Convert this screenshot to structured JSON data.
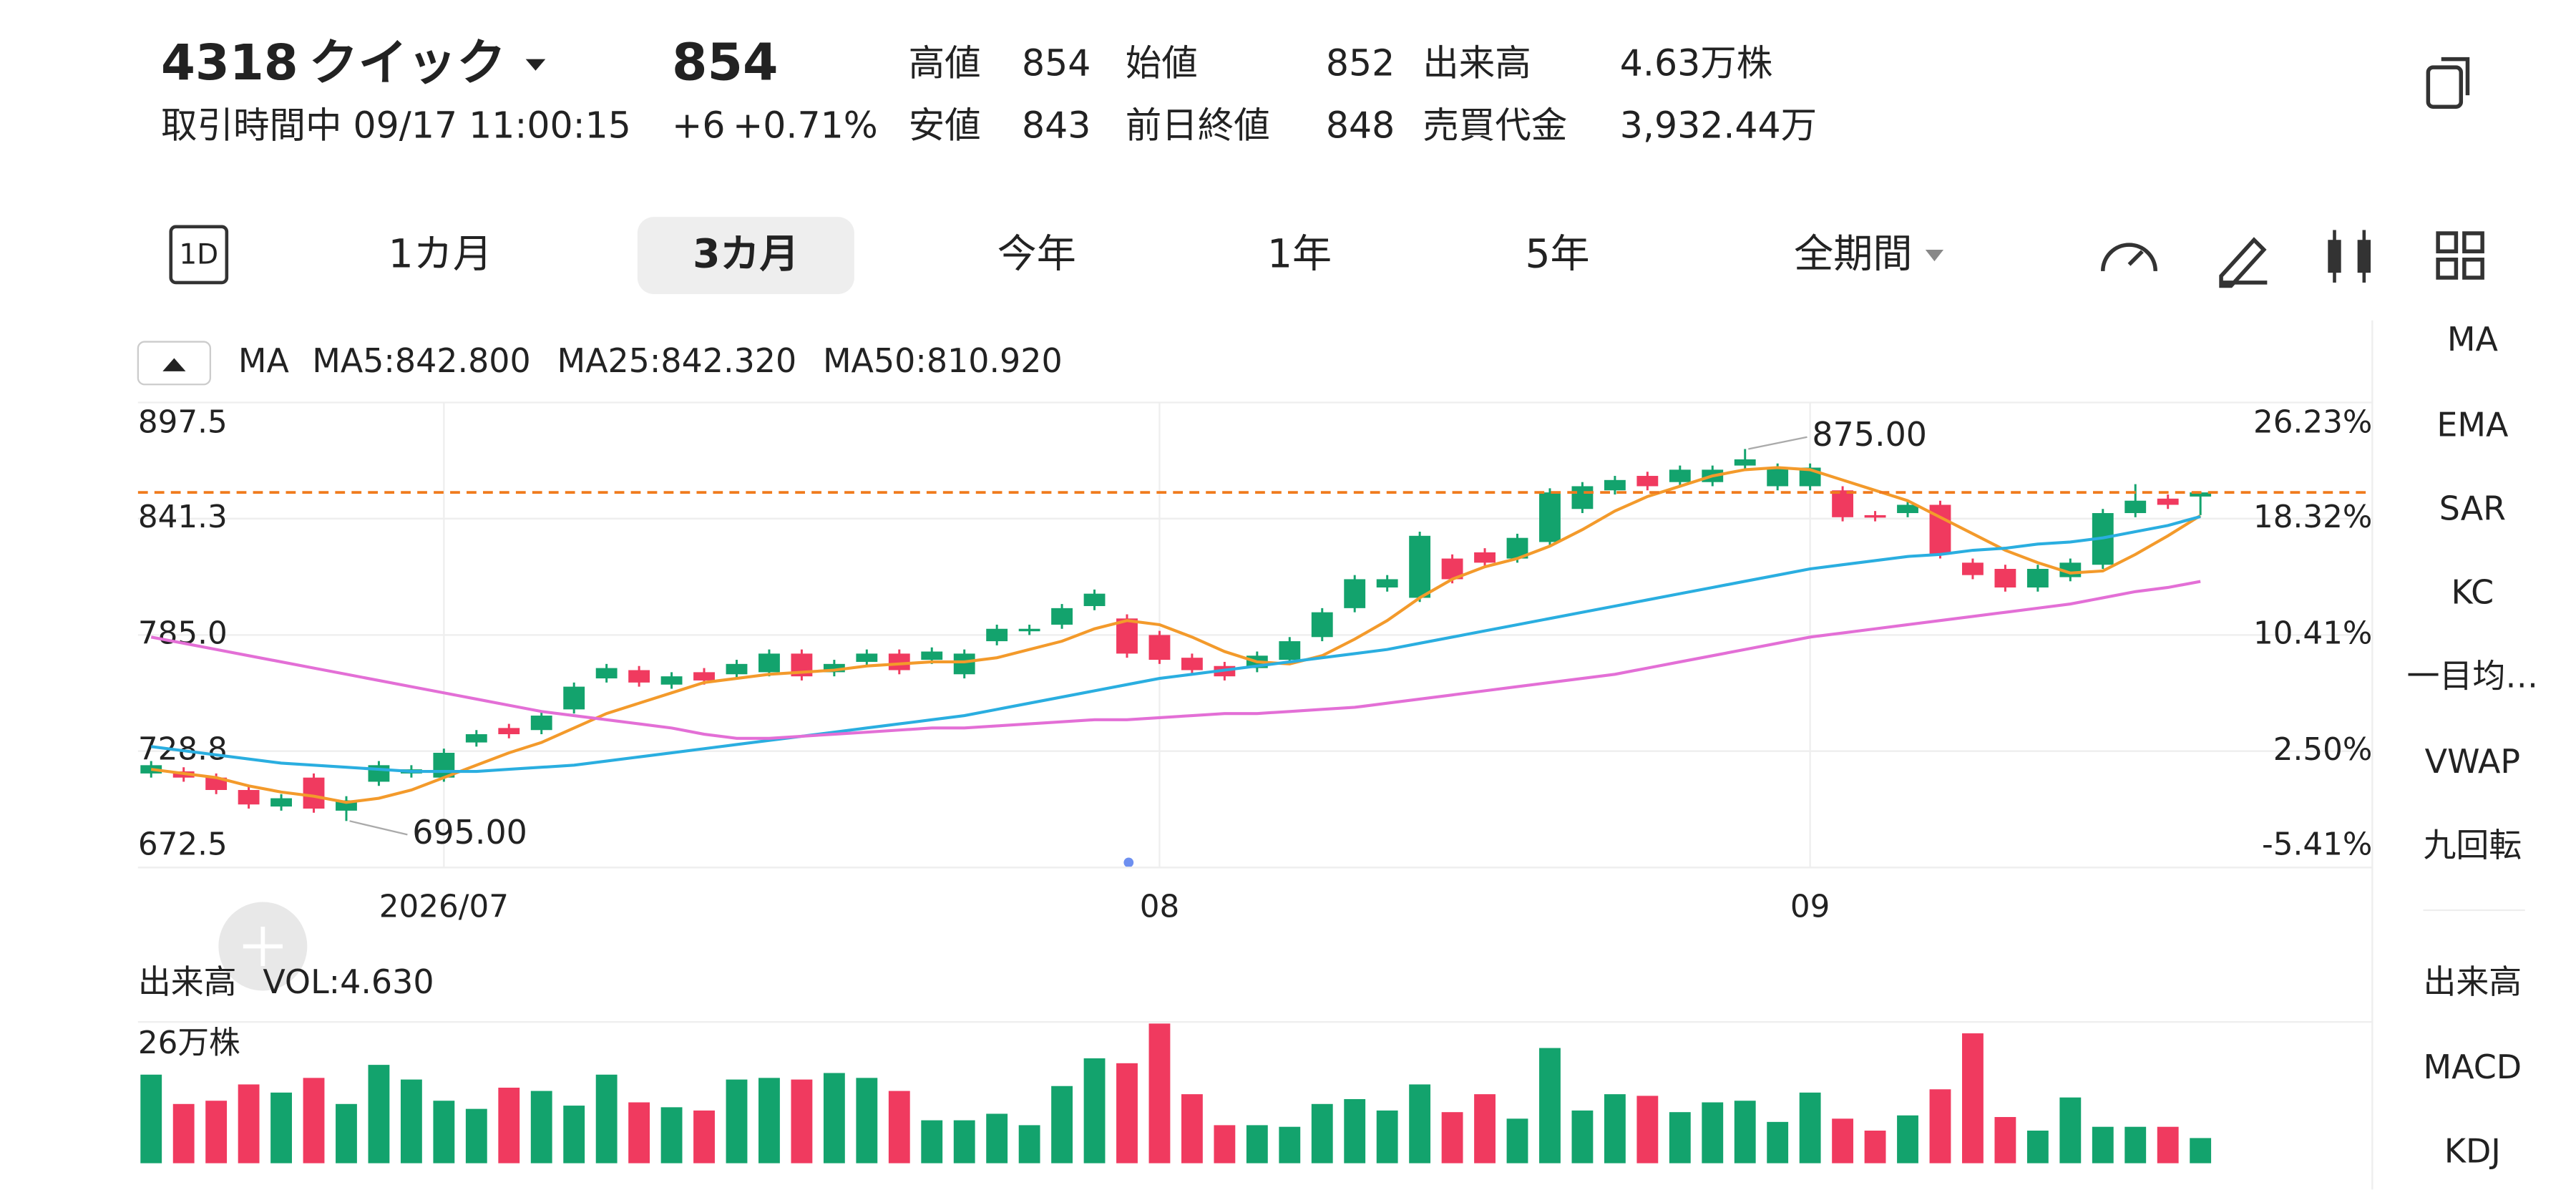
{
  "header": {
    "ticker": "4318",
    "name": "クイック",
    "price": 854,
    "change": "+6",
    "change_pct": "+0.71%",
    "status": "取引時間中 09/17 11:00:15",
    "stats": [
      {
        "label": "高値",
        "value": "854"
      },
      {
        "label": "安値",
        "value": "843"
      },
      {
        "label": "始値",
        "value": "852"
      },
      {
        "label": "前日終値",
        "value": "848"
      },
      {
        "label": "出来高",
        "value": "4.63万株"
      },
      {
        "label": "売買代金",
        "value": "3,932.44万"
      }
    ]
  },
  "period_icon": "1D",
  "tabs": [
    "1カ月",
    "3カ月",
    "今年",
    "1年",
    "5年",
    "全期間"
  ],
  "active_tab": 1,
  "indicator_menu": [
    {
      "label": "MA",
      "active": true
    },
    {
      "label": "EMA",
      "active": false
    },
    {
      "label": "SAR",
      "active": false
    },
    {
      "label": "KC",
      "active": false
    },
    {
      "label": "一目均…",
      "active": false
    },
    {
      "label": "VWAP",
      "active": false
    },
    {
      "label": "九回転",
      "active": false
    },
    {
      "label": "出来高",
      "active": true
    },
    {
      "label": "MACD",
      "active": true
    },
    {
      "label": "KDJ",
      "active": false
    }
  ],
  "chart_data": {
    "type": "candlestick",
    "legend_title": "MA",
    "up_color": "#13a36d",
    "down_color": "#f03a5f",
    "categories": [
      null,
      null,
      null,
      null,
      null,
      null,
      null,
      null,
      null,
      "2026/07",
      null,
      null,
      null,
      null,
      null,
      null,
      null,
      null,
      null,
      null,
      null,
      null,
      null,
      null,
      null,
      null,
      null,
      null,
      null,
      null,
      null,
      "08",
      null,
      null,
      null,
      null,
      null,
      null,
      null,
      null,
      null,
      null,
      null,
      null,
      null,
      null,
      null,
      null,
      null,
      null,
      null,
      "09",
      null,
      null,
      null,
      null,
      null,
      null,
      null,
      null,
      null,
      null,
      null,
      null
    ],
    "open": [
      718,
      719,
      716,
      710,
      702,
      716,
      700,
      714,
      718,
      716,
      733,
      740,
      739,
      749,
      764,
      768,
      761,
      767,
      766,
      767,
      776,
      767,
      772,
      776,
      773,
      766,
      782,
      787,
      790,
      799,
      793,
      785,
      774,
      770,
      769,
      773,
      784,
      798,
      808,
      803,
      822,
      825,
      822,
      830,
      846,
      855,
      862,
      859,
      859,
      867,
      857,
      857,
      855,
      843,
      844,
      848,
      820,
      817,
      808,
      813,
      819,
      844,
      851,
      852
    ],
    "high": [
      724,
      721,
      718,
      712,
      708,
      718,
      707,
      724,
      722,
      730,
      739,
      742,
      748,
      762,
      771,
      770,
      767,
      769,
      773,
      778,
      778,
      773,
      778,
      778,
      779,
      778,
      790,
      790,
      800,
      807,
      795,
      787,
      776,
      772,
      777,
      784,
      798,
      814,
      814,
      835,
      824,
      827,
      834,
      856,
      859,
      862,
      864,
      867,
      867,
      875,
      868,
      868,
      857,
      845,
      850,
      850,
      822,
      819,
      819,
      822,
      846,
      858,
      853,
      854
    ],
    "low": [
      716,
      714,
      708,
      701,
      700,
      699,
      695,
      712,
      716,
      714,
      731,
      735,
      737,
      747,
      762,
      760,
      759,
      761,
      764,
      765,
      763,
      765,
      770,
      766,
      771,
      764,
      780,
      785,
      788,
      797,
      774,
      771,
      766,
      763,
      767,
      771,
      782,
      796,
      806,
      801,
      810,
      818,
      820,
      828,
      844,
      853,
      855,
      857,
      857,
      865,
      855,
      855,
      840,
      840,
      842,
      822,
      812,
      806,
      806,
      811,
      817,
      842,
      846,
      843
    ],
    "close": [
      722,
      716,
      710,
      703,
      706,
      701,
      705,
      722,
      720,
      728,
      737,
      737,
      746,
      760,
      769,
      762,
      765,
      763,
      771,
      776,
      765,
      771,
      776,
      768,
      777,
      776,
      788,
      788,
      798,
      805,
      776,
      773,
      768,
      765,
      775,
      782,
      796,
      812,
      812,
      833,
      812,
      820,
      832,
      854,
      857,
      860,
      857,
      865,
      865,
      870,
      866,
      866,
      842,
      842,
      848,
      824,
      814,
      808,
      817,
      820,
      844,
      850,
      848,
      854
    ],
    "series": [
      {
        "name": "MA5:842.800",
        "color": "#f39a2b",
        "values": [
          720,
          718,
          716,
          712,
          709,
          707,
          704,
          706,
          710,
          716,
          722,
          728,
          733,
          740,
          747,
          752,
          757,
          762,
          764,
          766,
          767,
          768,
          770,
          771,
          772,
          772,
          774,
          778,
          782,
          788,
          792,
          790,
          784,
          777,
          772,
          771,
          775,
          783,
          792,
          803,
          812,
          818,
          822,
          828,
          836,
          845,
          852,
          857,
          862,
          865,
          866,
          865,
          860,
          855,
          850,
          842,
          834,
          826,
          820,
          815,
          816,
          824,
          833,
          842.8
        ]
      },
      {
        "name": "MA25:842.320",
        "color": "#2aaee0",
        "values": [
          731,
          729,
          727,
          725,
          723,
          722,
          721,
          720,
          719,
          719,
          719,
          720,
          721,
          722,
          724,
          726,
          728,
          730,
          732,
          734,
          736,
          738,
          740,
          742,
          744,
          746,
          749,
          752,
          755,
          758,
          761,
          764,
          766,
          768,
          770,
          772,
          774,
          776,
          778,
          781,
          784,
          787,
          790,
          793,
          796,
          799,
          802,
          805,
          808,
          811,
          814,
          817,
          819,
          821,
          823,
          824,
          826,
          827,
          829,
          830,
          832,
          835,
          838,
          842.32
        ]
      },
      {
        "name": "MA50:810.920",
        "color": "#e36fd6",
        "values": [
          784,
          781,
          778,
          775,
          772,
          769,
          766,
          763,
          760,
          757,
          754,
          751,
          748,
          746,
          744,
          742,
          740,
          737,
          735,
          735,
          736,
          737,
          738,
          739,
          740,
          740,
          741,
          742,
          743,
          744,
          744,
          745,
          746,
          747,
          747,
          748,
          749,
          750,
          752,
          754,
          756,
          758,
          760,
          762,
          764,
          766,
          769,
          772,
          775,
          778,
          781,
          784,
          786,
          788,
          790,
          792,
          794,
          796,
          798,
          800,
          803,
          806,
          808,
          810.92
        ]
      }
    ],
    "ylim": [
      672.5,
      897.5
    ],
    "yticks": [
      {
        "value": 897.5,
        "label": "897.5"
      },
      {
        "value": 841.3,
        "label": "841.3"
      },
      {
        "value": 785,
        "label": "785.0"
      },
      {
        "value": 728.8,
        "label": "728.8"
      },
      {
        "value": 672.5,
        "label": "672.5"
      }
    ],
    "y2lim": [
      -5.41,
      26.23
    ],
    "y2ticks": [
      {
        "value": 26.23,
        "label": "26.23%"
      },
      {
        "value": 18.32,
        "label": "18.32%"
      },
      {
        "value": 10.41,
        "label": "10.41%"
      },
      {
        "value": 2.5,
        "label": "2.50%"
      },
      {
        "value": -5.41,
        "label": "-5.41%"
      }
    ],
    "annotations": [
      "875.00",
      "695.00"
    ],
    "grid": true,
    "volume": {
      "title": "出来高",
      "name": "VOL:4.630",
      "ylim": [
        0,
        26
      ],
      "yticks": [
        {
          "value": 26,
          "label": "26万株"
        }
      ],
      "values": [
        16.3,
        10.9,
        11.5,
        14.5,
        13,
        15.7,
        10.9,
        18.1,
        15.4,
        11.5,
        10,
        13.9,
        13.3,
        10.6,
        16.3,
        11.2,
        10.3,
        9.7,
        15.4,
        15.7,
        15.4,
        16.6,
        15.7,
        13.3,
        7.9,
        7.9,
        9.1,
        7,
        14.2,
        19.3,
        18.4,
        25.7,
        12.7,
        7,
        7,
        6.7,
        10.9,
        11.8,
        9.7,
        14.5,
        9.4,
        12.7,
        8.2,
        21.2,
        9.7,
        12.7,
        12.4,
        9.4,
        11.2,
        11.5,
        7.6,
        13,
        8.2,
        6,
        8.8,
        13.6,
        23.9,
        8.5,
        6,
        12.1,
        6.7,
        6.7,
        6.7,
        4.63
      ]
    }
  }
}
